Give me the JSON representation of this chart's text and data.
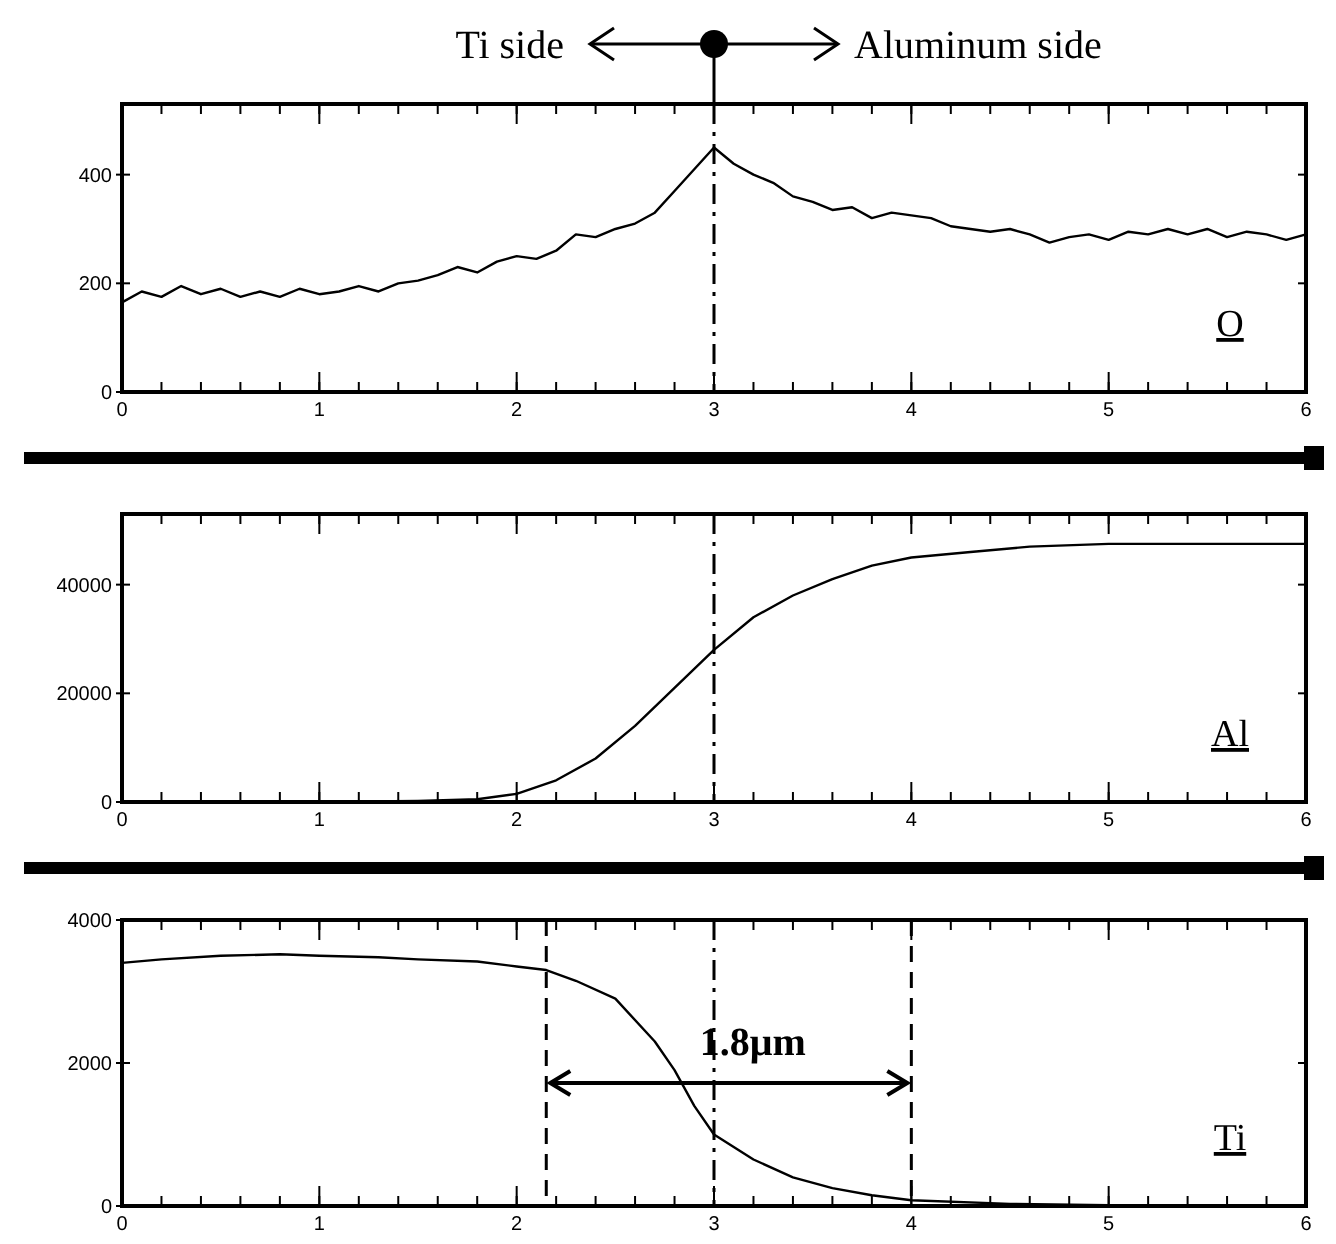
{
  "chart_data": [
    {
      "type": "line",
      "annotations": [
        "Ti side",
        "Aluminum side"
      ],
      "xlim": [
        0,
        6
      ],
      "xticks": [
        0,
        1,
        2,
        3,
        4,
        5,
        6
      ],
      "ylim": [
        0,
        530
      ],
      "yticks": [
        0,
        200,
        400
      ],
      "grid": false,
      "marker": "none",
      "line_style": "solid",
      "x": [
        0,
        0.1,
        0.2,
        0.3,
        0.4,
        0.5,
        0.6,
        0.7,
        0.8,
        0.9,
        1,
        1.1,
        1.2,
        1.3,
        1.4,
        1.5,
        1.6,
        1.7,
        1.8,
        1.9,
        2,
        2.1,
        2.2,
        2.3,
        2.4,
        2.5,
        2.6,
        2.7,
        2.8,
        2.9,
        3,
        3.1,
        3.2,
        3.3,
        3.4,
        3.5,
        3.6,
        3.7,
        3.8,
        3.9,
        4,
        4.1,
        4.2,
        4.3,
        4.4,
        4.5,
        4.6,
        4.7,
        4.8,
        4.9,
        5,
        5.1,
        5.2,
        5.3,
        5.4,
        5.5,
        5.6,
        5.7,
        5.8,
        5.9,
        6
      ],
      "series": [
        {
          "name": "O",
          "color": "#000000",
          "values": [
            165,
            185,
            175,
            195,
            180,
            190,
            175,
            185,
            175,
            190,
            180,
            185,
            195,
            185,
            200,
            205,
            215,
            230,
            220,
            240,
            250,
            245,
            260,
            290,
            285,
            300,
            310,
            330,
            370,
            410,
            450,
            420,
            400,
            385,
            360,
            350,
            335,
            340,
            320,
            330,
            325,
            320,
            305,
            300,
            295,
            300,
            290,
            275,
            285,
            290,
            280,
            295,
            290,
            300,
            290,
            300,
            285,
            295,
            290,
            280,
            290
          ]
        }
      ],
      "ref_lines": [
        {
          "axis": "x",
          "value": 3,
          "line_style": "dashdot"
        }
      ]
    },
    {
      "type": "line",
      "xlim": [
        0,
        6
      ],
      "xticks": [
        0,
        1,
        2,
        3,
        4,
        5,
        6
      ],
      "ylim": [
        0,
        53000
      ],
      "yticks": [
        0,
        20000,
        40000
      ],
      "grid": false,
      "marker": "none",
      "line_style": "solid",
      "x": [
        0,
        0.5,
        1,
        1.5,
        1.8,
        2,
        2.2,
        2.4,
        2.6,
        2.8,
        3,
        3.2,
        3.4,
        3.6,
        3.8,
        4,
        4.3,
        4.6,
        5,
        5.5,
        6
      ],
      "series": [
        {
          "name": "Al",
          "color": "#000000",
          "values": [
            0,
            0,
            0,
            200,
            500,
            1500,
            4000,
            8000,
            14000,
            21000,
            28000,
            34000,
            38000,
            41000,
            43500,
            45000,
            46000,
            47000,
            47500,
            47500,
            47500
          ]
        }
      ],
      "ref_lines": [
        {
          "axis": "x",
          "value": 3,
          "line_style": "dashdot"
        }
      ]
    },
    {
      "type": "line",
      "annotations": [
        "1.8μm"
      ],
      "xlim": [
        0,
        6
      ],
      "xticks": [
        0,
        1,
        2,
        3,
        4,
        5,
        6
      ],
      "ylim": [
        0,
        4000
      ],
      "yticks": [
        0,
        2000,
        4000
      ],
      "grid": false,
      "marker": "none",
      "line_style": "solid",
      "x": [
        0,
        0.2,
        0.5,
        0.8,
        1,
        1.3,
        1.5,
        1.8,
        2,
        2.15,
        2.3,
        2.5,
        2.7,
        2.8,
        2.9,
        3,
        3.2,
        3.4,
        3.6,
        3.8,
        4,
        4.5,
        5,
        6
      ],
      "series": [
        {
          "name": "Ti",
          "color": "#000000",
          "values": [
            3400,
            3450,
            3500,
            3520,
            3500,
            3480,
            3450,
            3420,
            3350,
            3300,
            3150,
            2900,
            2300,
            1900,
            1400,
            1000,
            650,
            400,
            250,
            150,
            80,
            30,
            10,
            0
          ]
        }
      ],
      "ref_lines": [
        {
          "axis": "x",
          "value": 3,
          "line_style": "dashdot"
        },
        {
          "axis": "x",
          "value": 2.15,
          "line_style": "dashed"
        },
        {
          "axis": "x",
          "value": 4,
          "line_style": "dashed"
        }
      ]
    }
  ]
}
